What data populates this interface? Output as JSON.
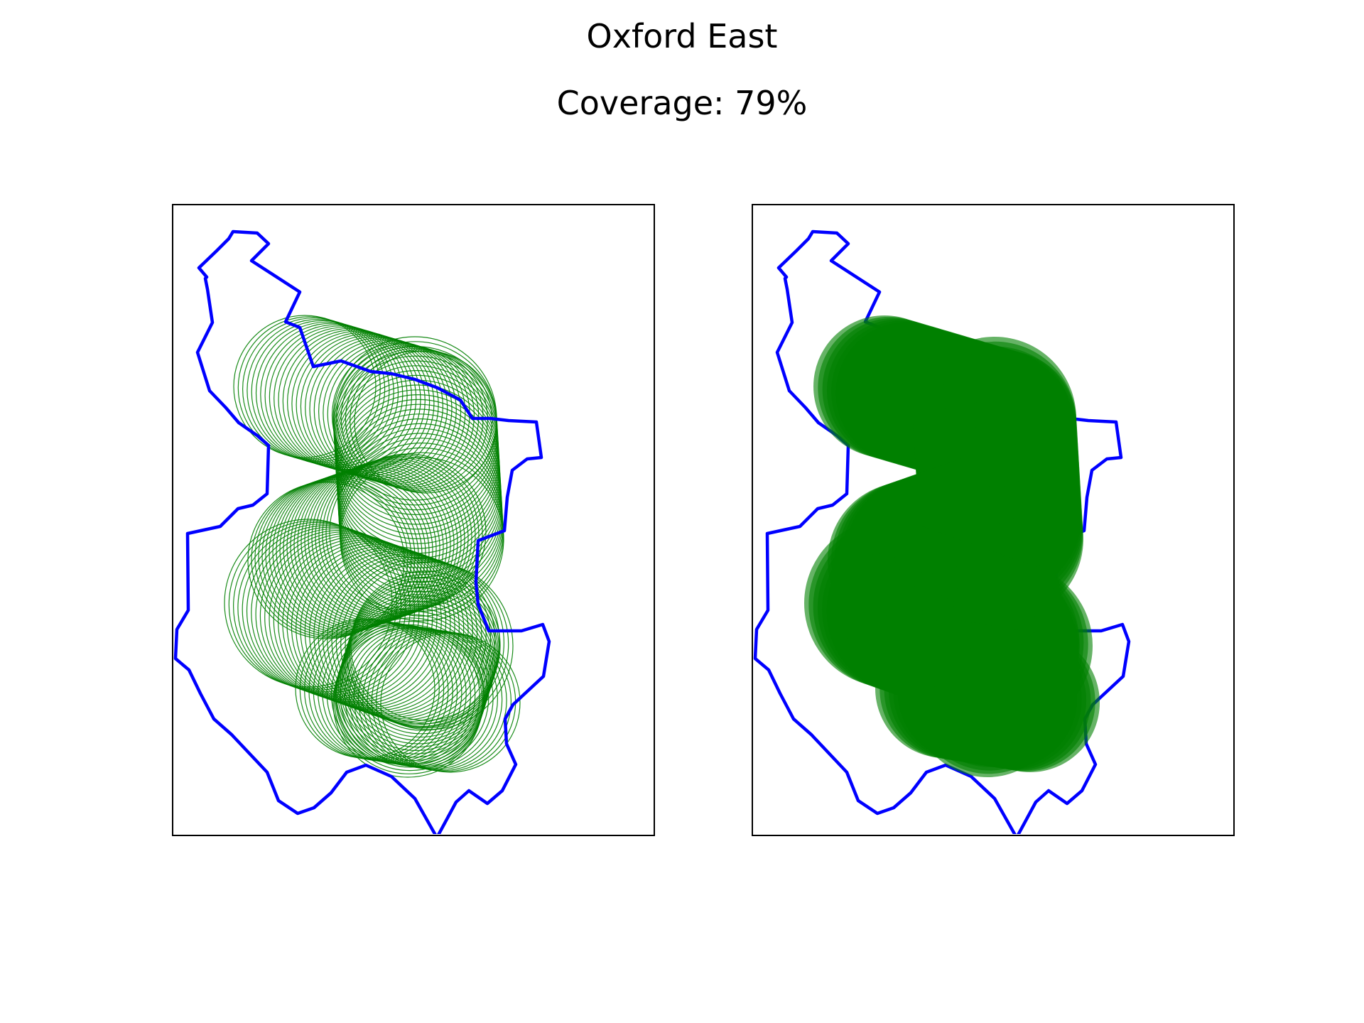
{
  "title": "Oxford East",
  "subtitle": "Coverage: 79%",
  "colors": {
    "boundary": "#0000ff",
    "coverage": "#008000",
    "frame": "#000000",
    "background": "#ffffff"
  },
  "panels": [
    {
      "id": "left",
      "style": "circle-outlines"
    },
    {
      "id": "right",
      "style": "filled-circles"
    }
  ]
}
